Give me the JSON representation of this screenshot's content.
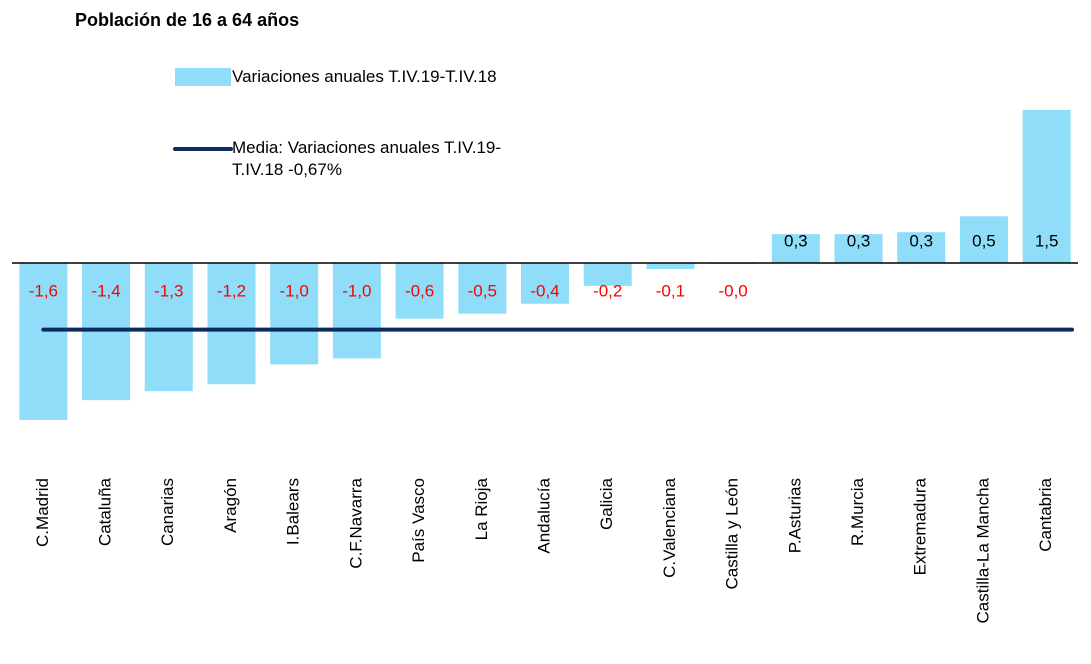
{
  "chart_data": {
    "type": "bar",
    "title": "Población de 16 a 64 años",
    "categories": [
      "C.Madrid",
      "Cataluña",
      "Canarias",
      "Aragón",
      "I.Balears",
      "C.F.Navarra",
      "País Vasco",
      "La Rioja",
      "Andalucía",
      "Galicia",
      "C.Valenciana",
      "Castilla y León",
      "P.Asturias",
      "R.Murcia",
      "Extremadura",
      "Castilla-La Mancha",
      "Cantabria"
    ],
    "series": [
      {
        "name": "Variaciones anuales T.IV.19-T.IV.18",
        "color": "#8fddf8",
        "values": [
          -1.58,
          -1.38,
          -1.29,
          -1.22,
          -1.02,
          -0.96,
          -0.56,
          -0.51,
          -0.41,
          -0.23,
          -0.06,
          -0.01,
          0.29,
          0.29,
          0.31,
          0.47,
          1.54
        ],
        "value_labels": [
          "-1,6",
          "-1,4",
          "-1,3",
          "-1,2",
          "-1,0",
          "-1,0",
          "-0,6",
          "-0,5",
          "-0,4",
          "-0,2",
          "-0,1",
          "-0,0",
          "0,3",
          "0,3",
          "0,3",
          "0,5",
          "1,5"
        ]
      }
    ],
    "mean": {
      "name": "Media: Variaciones anuales T.IV.19-T.IV.18 -0,67%",
      "color": "#0c2b5e",
      "value": -0.67
    },
    "negative_label_color": "#ff0000",
    "ylim": [
      -1.6,
      1.6
    ]
  }
}
